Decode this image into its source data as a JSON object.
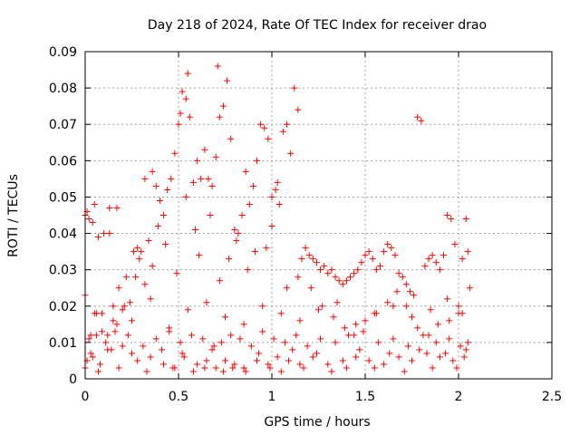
{
  "chart_data": {
    "type": "scatter",
    "title": "Day 218 of 2024, Rate Of TEC Index for receiver drao",
    "xlabel": "GPS time / hours",
    "ylabel": "ROTI / TECUs",
    "xlim": [
      0,
      2.5
    ],
    "ylim": [
      0,
      0.09
    ],
    "xticks": [
      0,
      0.5,
      1,
      1.5,
      2,
      2.5
    ],
    "xtick_labels": [
      "0",
      "0.5",
      "1",
      "1.5",
      "2",
      "2.5"
    ],
    "yticks": [
      0,
      0.01,
      0.02,
      0.03,
      0.04,
      0.05,
      0.06,
      0.07,
      0.08,
      0.09
    ],
    "ytick_labels": [
      "0",
      "0.01",
      "0.02",
      "0.03",
      "0.04",
      "0.05",
      "0.06",
      "0.07",
      "0.08",
      "0.09"
    ],
    "grid": true,
    "marker": "+",
    "color": "#ff0000",
    "series": [
      {
        "x": [
          0.0,
          0.01,
          0.02,
          0.03,
          0.05,
          0.06,
          0.07,
          0.09,
          0.1,
          0.12,
          0.13,
          0.15,
          0.17,
          0.18,
          0.2,
          0.22,
          0.24,
          0.26,
          0.28,
          0.3,
          0.32,
          0.34,
          0.36,
          0.38,
          0.4,
          0.42,
          0.44,
          0.46,
          0.48,
          0.5,
          0.51,
          0.52,
          0.54,
          0.55,
          0.56,
          0.58,
          0.6,
          0.62,
          0.64,
          0.66,
          0.68,
          0.7,
          0.71,
          0.72,
          0.74,
          0.76,
          0.78,
          0.8,
          0.82,
          0.84,
          0.86,
          0.88,
          0.9,
          0.92,
          0.94,
          0.96,
          0.98,
          1.0,
          1.02,
          1.04,
          1.06,
          1.08,
          1.1,
          1.12,
          1.14,
          1.16,
          1.18,
          1.2,
          1.22,
          1.24,
          1.26,
          1.28,
          1.3,
          1.32,
          1.34,
          1.36,
          1.38,
          1.4,
          1.42,
          1.44,
          1.46,
          1.48,
          1.5,
          1.52,
          1.54,
          1.56,
          1.58,
          1.6,
          1.62,
          1.64,
          1.66,
          1.68,
          1.7,
          1.72,
          1.74,
          1.76,
          1.78,
          1.8,
          1.82,
          1.84,
          1.86,
          1.88,
          1.9,
          1.92,
          1.94,
          1.96,
          1.98,
          2.0,
          2.02,
          2.04,
          2.05,
          0.01,
          0.04,
          0.08,
          0.14,
          0.2,
          0.28,
          0.35,
          0.42,
          0.48,
          0.53,
          0.6,
          0.65,
          0.7,
          0.75,
          0.8,
          0.85,
          0.92,
          0.98,
          1.03,
          1.09,
          1.15,
          1.22,
          1.3,
          1.38,
          1.45,
          1.52,
          1.6,
          1.68,
          1.75,
          1.83,
          1.9,
          1.97,
          2.03,
          0.02,
          0.06,
          0.11,
          0.16,
          0.23,
          0.31,
          0.38,
          0.45,
          0.51,
          0.57,
          0.63,
          0.69,
          0.73,
          0.78,
          0.83,
          0.89,
          0.95,
          1.01,
          1.07,
          1.13,
          1.19,
          1.26,
          1.34,
          1.41,
          1.49,
          1.57,
          1.65,
          1.73,
          1.81,
          1.88,
          1.95,
          2.01,
          2.05,
          0.0,
          0.03,
          0.07,
          0.12,
          0.18,
          0.25,
          0.33,
          0.41,
          0.47,
          0.52,
          0.58,
          0.64,
          0.68,
          0.74,
          0.79,
          0.86,
          0.93,
          0.99,
          1.05,
          1.11,
          1.17,
          1.24,
          1.32,
          1.4,
          1.47,
          1.55,
          1.63,
          1.71,
          1.79,
          1.86,
          1.93,
          1.99,
          2.04,
          0.05,
          0.15,
          0.25,
          0.35,
          0.45,
          0.55,
          0.65,
          0.75,
          0.85,
          0.95,
          1.05,
          1.15,
          1.25,
          1.35,
          1.45,
          1.55,
          1.65,
          1.75,
          1.85,
          1.95,
          2.02,
          0.0,
          0.04,
          0.09,
          0.13,
          0.17,
          0.21,
          0.27,
          0.29,
          0.32,
          0.36,
          0.39,
          0.43,
          0.49,
          0.54,
          0.59,
          0.61,
          0.67,
          0.72,
          0.77,
          0.81,
          0.87,
          0.91,
          0.97,
          1.0,
          1.03,
          1.08,
          1.14,
          1.21,
          1.27,
          1.33,
          1.39,
          1.44,
          1.5,
          1.56,
          1.62,
          1.67,
          1.72,
          1.78,
          1.84,
          1.89,
          1.94,
          2.0,
          2.06
        ],
        "y": [
          0.023,
          0.046,
          0.044,
          0.012,
          0.048,
          0.018,
          0.039,
          0.013,
          0.04,
          0.012,
          0.047,
          0.016,
          0.047,
          0.025,
          0.019,
          0.028,
          0.021,
          0.035,
          0.036,
          0.035,
          0.055,
          0.038,
          0.057,
          0.053,
          0.049,
          0.045,
          0.052,
          0.055,
          0.062,
          0.07,
          0.073,
          0.079,
          0.077,
          0.084,
          0.072,
          0.054,
          0.06,
          0.055,
          0.063,
          0.055,
          0.053,
          0.061,
          0.086,
          0.072,
          0.075,
          0.082,
          0.066,
          0.041,
          0.04,
          0.045,
          0.057,
          0.048,
          0.053,
          0.06,
          0.07,
          0.069,
          0.066,
          0.042,
          0.052,
          0.048,
          0.068,
          0.07,
          0.062,
          0.08,
          0.074,
          0.033,
          0.036,
          0.034,
          0.033,
          0.032,
          0.03,
          0.031,
          0.029,
          0.03,
          0.028,
          0.027,
          0.026,
          0.027,
          0.028,
          0.029,
          0.03,
          0.032,
          0.034,
          0.035,
          0.033,
          0.03,
          0.031,
          0.035,
          0.037,
          0.036,
          0.034,
          0.029,
          0.028,
          0.026,
          0.024,
          0.023,
          0.072,
          0.071,
          0.031,
          0.033,
          0.034,
          0.032,
          0.03,
          0.034,
          0.045,
          0.044,
          0.037,
          0.02,
          0.033,
          0.044,
          0.035,
          0.005,
          0.006,
          0.004,
          0.008,
          0.009,
          0.005,
          0.006,
          0.004,
          0.003,
          0.006,
          0.004,
          0.005,
          0.003,
          0.005,
          0.004,
          0.003,
          0.005,
          0.004,
          0.006,
          0.005,
          0.004,
          0.006,
          0.004,
          0.005,
          0.006,
          0.005,
          0.004,
          0.006,
          0.005,
          0.007,
          0.006,
          0.005,
          0.006,
          0.011,
          0.012,
          0.01,
          0.013,
          0.012,
          0.009,
          0.011,
          0.013,
          0.01,
          0.012,
          0.011,
          0.009,
          0.01,
          0.012,
          0.011,
          0.009,
          0.013,
          0.011,
          0.01,
          0.012,
          0.009,
          0.011,
          0.01,
          0.012,
          0.013,
          0.01,
          0.011,
          0.009,
          0.012,
          0.01,
          0.011,
          0.009,
          0.01,
          0.003,
          0.007,
          0.002,
          0.008,
          0.003,
          0.007,
          0.002,
          0.008,
          0.003,
          0.007,
          0.002,
          0.003,
          0.008,
          0.002,
          0.003,
          0.002,
          0.007,
          0.003,
          0.002,
          0.008,
          0.003,
          0.007,
          0.002,
          0.003,
          0.008,
          0.003,
          0.007,
          0.002,
          0.008,
          0.003,
          0.007,
          0.003,
          0.008,
          0.018,
          0.02,
          0.016,
          0.022,
          0.014,
          0.019,
          0.021,
          0.017,
          0.015,
          0.02,
          0.018,
          0.016,
          0.019,
          0.021,
          0.015,
          0.018,
          0.02,
          0.017,
          0.019,
          0.016,
          0.018,
          0.045,
          0.043,
          0.018,
          0.04,
          0.015,
          0.02,
          0.028,
          0.033,
          0.026,
          0.031,
          0.042,
          0.037,
          0.029,
          0.05,
          0.041,
          0.034,
          0.045,
          0.027,
          0.033,
          0.038,
          0.03,
          0.035,
          0.036,
          0.05,
          0.054,
          0.025,
          0.028,
          0.025,
          0.02,
          0.017,
          0.014,
          0.012,
          0.016,
          0.018,
          0.021,
          0.024,
          0.02,
          0.014,
          0.012,
          0.015,
          0.022,
          0.018,
          0.025
        ]
      }
    ]
  }
}
